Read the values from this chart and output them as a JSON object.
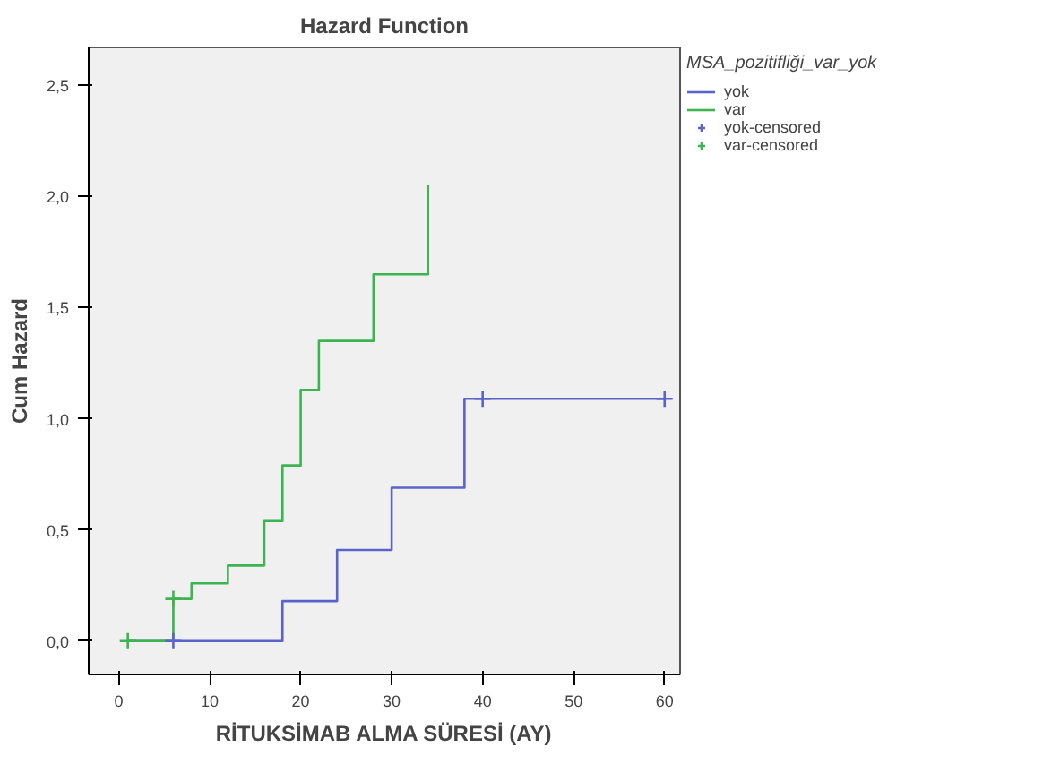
{
  "chart_data": {
    "type": "step",
    "title": "Hazard Function",
    "xlabel": "RİTUKSİMAB ALMA SÜRESİ (AY)",
    "ylabel": "Cum Hazard",
    "legend_title": "MSA_pozitifliği_var_yok",
    "xlim": [
      -3.3,
      61.7
    ],
    "ylim": [
      -0.15,
      2.67
    ],
    "xticks": [
      0,
      10,
      20,
      30,
      40,
      50,
      60
    ],
    "yticks": [
      {
        "value": 0,
        "label": "0,0"
      },
      {
        "value": 0.5,
        "label": "0,5"
      },
      {
        "value": 1,
        "label": "1,0"
      },
      {
        "value": 1.5,
        "label": "1,5"
      },
      {
        "value": 2,
        "label": "2,0"
      },
      {
        "value": 2.5,
        "label": "2,5"
      }
    ],
    "grid": false,
    "legend": "right",
    "series": [
      {
        "name": "yok",
        "color": "#5a64c8",
        "x": [
          1,
          18,
          24,
          30,
          38,
          60
        ],
        "values": [
          0,
          0.18,
          0.41,
          0.69,
          1.09,
          1.09
        ]
      },
      {
        "name": "var",
        "color": "#3cb450",
        "x": [
          1,
          6,
          8,
          12,
          16,
          18,
          20,
          22,
          28,
          34,
          34
        ],
        "values": [
          0,
          0.19,
          0.26,
          0.34,
          0.54,
          0.79,
          1.13,
          1.35,
          1.65,
          2.05,
          2.05
        ]
      },
      {
        "name": "yok-censored",
        "color": "#5a64c8",
        "type": "scatter",
        "marker": "cross",
        "x": [
          6,
          40,
          60
        ],
        "values": [
          0,
          1.09,
          1.09
        ]
      },
      {
        "name": "var-censored",
        "color": "#3cb450",
        "type": "scatter",
        "marker": "cross",
        "x": [
          1,
          6
        ],
        "values": [
          0,
          0.19
        ]
      }
    ]
  }
}
